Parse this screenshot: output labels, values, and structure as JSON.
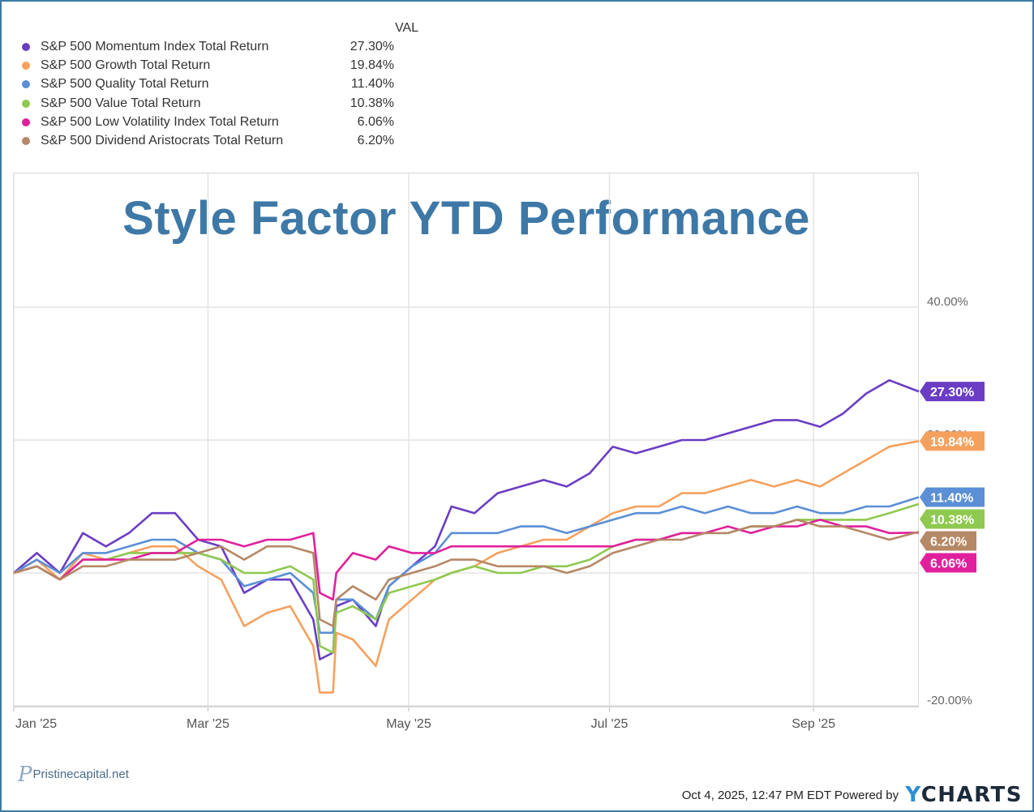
{
  "chart_data": {
    "type": "line",
    "title": "Style Factor YTD Performance",
    "legend_header": "VAL",
    "y_ticks": [
      "40.00%",
      "20.00%",
      "-20.00%"
    ],
    "x_ticks": [
      "Jan '25",
      "Mar '25",
      "May '25",
      "Jul '25",
      "Sep '25"
    ],
    "x_tick_dates": [
      "2025-01-01",
      "2025-03-01",
      "2025-05-01",
      "2025-07-01",
      "2025-09-01"
    ],
    "x_range": [
      "2025-01-01",
      "2025-10-03"
    ],
    "ylim": [
      -20,
      40
    ],
    "y_unit": "%",
    "legend_position": "top-left",
    "grid": true,
    "series": [
      {
        "name": "S&P 500 Momentum Index Total Return",
        "value_label": "27.30%",
        "final": 27.3,
        "color": "#6a3dc4",
        "points": [
          [
            "2025-01-01",
            0
          ],
          [
            "2025-01-08",
            3
          ],
          [
            "2025-01-15",
            0
          ],
          [
            "2025-01-22",
            6
          ],
          [
            "2025-01-29",
            4
          ],
          [
            "2025-02-05",
            6
          ],
          [
            "2025-02-12",
            9
          ],
          [
            "2025-02-19",
            9
          ],
          [
            "2025-02-26",
            5
          ],
          [
            "2025-03-05",
            4
          ],
          [
            "2025-03-12",
            -3
          ],
          [
            "2025-03-19",
            -1
          ],
          [
            "2025-03-26",
            -1
          ],
          [
            "2025-04-02",
            -7
          ],
          [
            "2025-04-04",
            -13
          ],
          [
            "2025-04-08",
            -12
          ],
          [
            "2025-04-09",
            -5
          ],
          [
            "2025-04-14",
            -4
          ],
          [
            "2025-04-21",
            -8
          ],
          [
            "2025-04-25",
            -2
          ],
          [
            "2025-05-02",
            1
          ],
          [
            "2025-05-09",
            4
          ],
          [
            "2025-05-14",
            10
          ],
          [
            "2025-05-21",
            9
          ],
          [
            "2025-05-28",
            12
          ],
          [
            "2025-06-04",
            13
          ],
          [
            "2025-06-11",
            14
          ],
          [
            "2025-06-18",
            13
          ],
          [
            "2025-06-25",
            15
          ],
          [
            "2025-07-02",
            19
          ],
          [
            "2025-07-09",
            18
          ],
          [
            "2025-07-16",
            19
          ],
          [
            "2025-07-23",
            20
          ],
          [
            "2025-07-30",
            20
          ],
          [
            "2025-08-06",
            21
          ],
          [
            "2025-08-13",
            22
          ],
          [
            "2025-08-20",
            23
          ],
          [
            "2025-08-27",
            23
          ],
          [
            "2025-09-03",
            22
          ],
          [
            "2025-09-10",
            24
          ],
          [
            "2025-09-17",
            27
          ],
          [
            "2025-09-24",
            29
          ],
          [
            "2025-10-03",
            27.3
          ]
        ]
      },
      {
        "name": "S&P 500 Growth Total Return",
        "value_label": "19.84%",
        "final": 19.84,
        "color": "#f5a15e",
        "points": [
          [
            "2025-01-01",
            0
          ],
          [
            "2025-01-08",
            2
          ],
          [
            "2025-01-15",
            -1
          ],
          [
            "2025-01-22",
            3
          ],
          [
            "2025-01-29",
            2
          ],
          [
            "2025-02-05",
            3
          ],
          [
            "2025-02-12",
            4
          ],
          [
            "2025-02-19",
            4
          ],
          [
            "2025-02-26",
            1
          ],
          [
            "2025-03-05",
            -1
          ],
          [
            "2025-03-12",
            -8
          ],
          [
            "2025-03-19",
            -6
          ],
          [
            "2025-03-26",
            -5
          ],
          [
            "2025-04-02",
            -11
          ],
          [
            "2025-04-04",
            -18
          ],
          [
            "2025-04-08",
            -18
          ],
          [
            "2025-04-09",
            -9
          ],
          [
            "2025-04-14",
            -10
          ],
          [
            "2025-04-21",
            -14
          ],
          [
            "2025-04-25",
            -7
          ],
          [
            "2025-05-02",
            -4
          ],
          [
            "2025-05-09",
            -1
          ],
          [
            "2025-05-14",
            0
          ],
          [
            "2025-05-21",
            1
          ],
          [
            "2025-05-28",
            3
          ],
          [
            "2025-06-04",
            4
          ],
          [
            "2025-06-11",
            5
          ],
          [
            "2025-06-18",
            5
          ],
          [
            "2025-06-25",
            7
          ],
          [
            "2025-07-02",
            9
          ],
          [
            "2025-07-09",
            10
          ],
          [
            "2025-07-16",
            10
          ],
          [
            "2025-07-23",
            12
          ],
          [
            "2025-07-30",
            12
          ],
          [
            "2025-08-06",
            13
          ],
          [
            "2025-08-13",
            14
          ],
          [
            "2025-08-20",
            13
          ],
          [
            "2025-08-27",
            14
          ],
          [
            "2025-09-03",
            13
          ],
          [
            "2025-09-10",
            15
          ],
          [
            "2025-09-17",
            17
          ],
          [
            "2025-09-24",
            19
          ],
          [
            "2025-10-03",
            19.84
          ]
        ]
      },
      {
        "name": "S&P 500 Quality Total Return",
        "value_label": "11.40%",
        "final": 11.4,
        "color": "#5b8fd6",
        "points": [
          [
            "2025-01-01",
            0
          ],
          [
            "2025-01-08",
            2
          ],
          [
            "2025-01-15",
            0
          ],
          [
            "2025-01-22",
            3
          ],
          [
            "2025-01-29",
            3
          ],
          [
            "2025-02-05",
            4
          ],
          [
            "2025-02-12",
            5
          ],
          [
            "2025-02-19",
            5
          ],
          [
            "2025-02-26",
            3
          ],
          [
            "2025-03-05",
            2
          ],
          [
            "2025-03-12",
            -2
          ],
          [
            "2025-03-19",
            -1
          ],
          [
            "2025-03-26",
            0
          ],
          [
            "2025-04-02",
            -3
          ],
          [
            "2025-04-04",
            -9
          ],
          [
            "2025-04-08",
            -9
          ],
          [
            "2025-04-09",
            -4
          ],
          [
            "2025-04-14",
            -4
          ],
          [
            "2025-04-21",
            -7
          ],
          [
            "2025-04-25",
            -2
          ],
          [
            "2025-05-02",
            1
          ],
          [
            "2025-05-09",
            3
          ],
          [
            "2025-05-14",
            6
          ],
          [
            "2025-05-21",
            6
          ],
          [
            "2025-05-28",
            6
          ],
          [
            "2025-06-04",
            7
          ],
          [
            "2025-06-11",
            7
          ],
          [
            "2025-06-18",
            6
          ],
          [
            "2025-06-25",
            7
          ],
          [
            "2025-07-02",
            8
          ],
          [
            "2025-07-09",
            9
          ],
          [
            "2025-07-16",
            9
          ],
          [
            "2025-07-23",
            10
          ],
          [
            "2025-07-30",
            9
          ],
          [
            "2025-08-06",
            10
          ],
          [
            "2025-08-13",
            9
          ],
          [
            "2025-08-20",
            9
          ],
          [
            "2025-08-27",
            10
          ],
          [
            "2025-09-03",
            9
          ],
          [
            "2025-09-10",
            9
          ],
          [
            "2025-09-17",
            10
          ],
          [
            "2025-09-24",
            10
          ],
          [
            "2025-10-03",
            11.4
          ]
        ]
      },
      {
        "name": "S&P 500 Value Total Return",
        "value_label": "10.38%",
        "final": 10.38,
        "color": "#8fc94f",
        "points": [
          [
            "2025-01-01",
            0
          ],
          [
            "2025-01-08",
            1
          ],
          [
            "2025-01-15",
            -1
          ],
          [
            "2025-01-22",
            2
          ],
          [
            "2025-01-29",
            2
          ],
          [
            "2025-02-05",
            3
          ],
          [
            "2025-02-12",
            3
          ],
          [
            "2025-02-19",
            3
          ],
          [
            "2025-02-26",
            3
          ],
          [
            "2025-03-05",
            2
          ],
          [
            "2025-03-12",
            0
          ],
          [
            "2025-03-19",
            0
          ],
          [
            "2025-03-26",
            1
          ],
          [
            "2025-04-02",
            -1
          ],
          [
            "2025-04-04",
            -11
          ],
          [
            "2025-04-08",
            -12
          ],
          [
            "2025-04-09",
            -6
          ],
          [
            "2025-04-14",
            -5
          ],
          [
            "2025-04-21",
            -7
          ],
          [
            "2025-04-25",
            -3
          ],
          [
            "2025-05-02",
            -2
          ],
          [
            "2025-05-09",
            -1
          ],
          [
            "2025-05-14",
            0
          ],
          [
            "2025-05-21",
            1
          ],
          [
            "2025-05-28",
            0
          ],
          [
            "2025-06-04",
            0
          ],
          [
            "2025-06-11",
            1
          ],
          [
            "2025-06-18",
            1
          ],
          [
            "2025-06-25",
            2
          ],
          [
            "2025-07-02",
            4
          ],
          [
            "2025-07-09",
            5
          ],
          [
            "2025-07-16",
            5
          ],
          [
            "2025-07-23",
            6
          ],
          [
            "2025-07-30",
            6
          ],
          [
            "2025-08-06",
            6
          ],
          [
            "2025-08-13",
            7
          ],
          [
            "2025-08-20",
            7
          ],
          [
            "2025-08-27",
            8
          ],
          [
            "2025-09-03",
            8
          ],
          [
            "2025-09-10",
            8
          ],
          [
            "2025-09-17",
            8
          ],
          [
            "2025-09-24",
            9
          ],
          [
            "2025-10-03",
            10.38
          ]
        ]
      },
      {
        "name": "S&P 500 Low Volatility Index Total Return",
        "value_label": "6.06%",
        "final": 6.06,
        "color": "#e0209c",
        "points": [
          [
            "2025-01-01",
            0
          ],
          [
            "2025-01-08",
            1
          ],
          [
            "2025-01-15",
            -1
          ],
          [
            "2025-01-22",
            2
          ],
          [
            "2025-01-29",
            2
          ],
          [
            "2025-02-05",
            2
          ],
          [
            "2025-02-12",
            3
          ],
          [
            "2025-02-19",
            3
          ],
          [
            "2025-02-26",
            5
          ],
          [
            "2025-03-05",
            5
          ],
          [
            "2025-03-12",
            4
          ],
          [
            "2025-03-19",
            5
          ],
          [
            "2025-03-26",
            5
          ],
          [
            "2025-04-02",
            6
          ],
          [
            "2025-04-04",
            -3
          ],
          [
            "2025-04-08",
            -4
          ],
          [
            "2025-04-09",
            0
          ],
          [
            "2025-04-14",
            3
          ],
          [
            "2025-04-21",
            2
          ],
          [
            "2025-04-25",
            4
          ],
          [
            "2025-05-02",
            3
          ],
          [
            "2025-05-09",
            3
          ],
          [
            "2025-05-14",
            4
          ],
          [
            "2025-05-21",
            4
          ],
          [
            "2025-05-28",
            4
          ],
          [
            "2025-06-04",
            4
          ],
          [
            "2025-06-11",
            4
          ],
          [
            "2025-06-18",
            4
          ],
          [
            "2025-06-25",
            4
          ],
          [
            "2025-07-02",
            4
          ],
          [
            "2025-07-09",
            5
          ],
          [
            "2025-07-16",
            5
          ],
          [
            "2025-07-23",
            6
          ],
          [
            "2025-07-30",
            6
          ],
          [
            "2025-08-06",
            7
          ],
          [
            "2025-08-13",
            6
          ],
          [
            "2025-08-20",
            7
          ],
          [
            "2025-08-27",
            7
          ],
          [
            "2025-09-03",
            8
          ],
          [
            "2025-09-10",
            7
          ],
          [
            "2025-09-17",
            7
          ],
          [
            "2025-09-24",
            6
          ],
          [
            "2025-10-03",
            6.06
          ]
        ]
      },
      {
        "name": "S&P 500 Dividend Aristocrats Total Return",
        "value_label": "6.20%",
        "final": 6.2,
        "color": "#b58866",
        "points": [
          [
            "2025-01-01",
            0
          ],
          [
            "2025-01-08",
            1
          ],
          [
            "2025-01-15",
            -1
          ],
          [
            "2025-01-22",
            1
          ],
          [
            "2025-01-29",
            1
          ],
          [
            "2025-02-05",
            2
          ],
          [
            "2025-02-12",
            2
          ],
          [
            "2025-02-19",
            2
          ],
          [
            "2025-02-26",
            3
          ],
          [
            "2025-03-05",
            4
          ],
          [
            "2025-03-12",
            2
          ],
          [
            "2025-03-19",
            4
          ],
          [
            "2025-03-26",
            4
          ],
          [
            "2025-04-02",
            3
          ],
          [
            "2025-04-04",
            -7
          ],
          [
            "2025-04-08",
            -8
          ],
          [
            "2025-04-09",
            -4
          ],
          [
            "2025-04-14",
            -2
          ],
          [
            "2025-04-21",
            -4
          ],
          [
            "2025-04-25",
            -1
          ],
          [
            "2025-05-02",
            0
          ],
          [
            "2025-05-09",
            1
          ],
          [
            "2025-05-14",
            2
          ],
          [
            "2025-05-21",
            2
          ],
          [
            "2025-05-28",
            1
          ],
          [
            "2025-06-04",
            1
          ],
          [
            "2025-06-11",
            1
          ],
          [
            "2025-06-18",
            0
          ],
          [
            "2025-06-25",
            1
          ],
          [
            "2025-07-02",
            3
          ],
          [
            "2025-07-09",
            4
          ],
          [
            "2025-07-16",
            5
          ],
          [
            "2025-07-23",
            5
          ],
          [
            "2025-07-30",
            6
          ],
          [
            "2025-08-06",
            6
          ],
          [
            "2025-08-13",
            7
          ],
          [
            "2025-08-20",
            7
          ],
          [
            "2025-08-27",
            8
          ],
          [
            "2025-09-03",
            7
          ],
          [
            "2025-09-10",
            7
          ],
          [
            "2025-09-17",
            6
          ],
          [
            "2025-09-24",
            5
          ],
          [
            "2025-10-03",
            6.2
          ]
        ]
      }
    ]
  },
  "brand": {
    "name": "Pristinecapital.net"
  },
  "footer": {
    "timestamp": "Oct 4, 2025, 12:47 PM EDT",
    "powered_by": "Powered by",
    "ycharts_y": "Y",
    "ycharts_rest": "CHARTS"
  }
}
